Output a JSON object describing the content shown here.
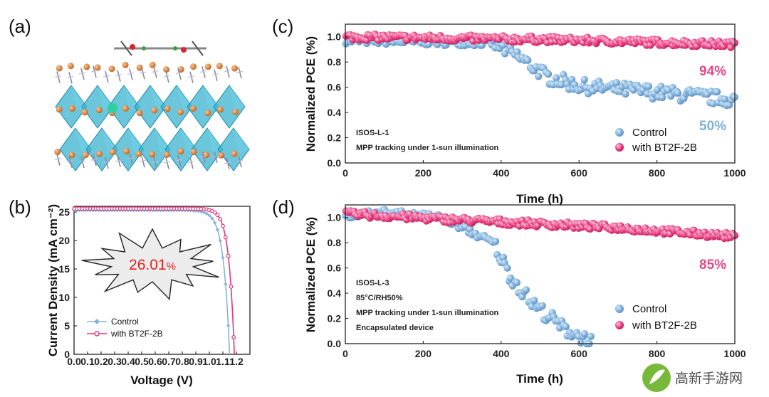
{
  "colors": {
    "control": "#87b3dc",
    "bt2f": "#e4357a",
    "pct_control": "#7fb0dc",
    "pct_bt2f": "#e04a86",
    "burst_text": "#e0241f"
  },
  "panel_a": {
    "label": "(a)"
  },
  "chart_data": [
    {
      "id": "b",
      "panel_label": "(b)",
      "type": "line",
      "xlabel": "Voltage (V)",
      "ylabel": "Current Density (mA cm⁻²)",
      "xlim": [
        0.0,
        1.3
      ],
      "ylim": [
        0,
        26
      ],
      "xticks": [
        "0.0",
        "0.1",
        "0.2",
        "0.3",
        "0.4",
        "0.5",
        "0.6",
        "0.7",
        "0.8",
        "0.9",
        "1.0",
        "1.1",
        "1.2"
      ],
      "yticks": [
        "0",
        "5",
        "10",
        "15",
        "20",
        "25"
      ],
      "series": [
        {
          "name": "Control",
          "color_key": "control",
          "jsc": 25.3,
          "voc": 1.15,
          "shape": 0.045
        },
        {
          "name": "with BT2F-2B",
          "color_key": "bt2f",
          "jsc": 25.6,
          "voc": 1.185,
          "shape": 0.04
        }
      ],
      "annotation": {
        "value": "26.01",
        "unit": "%"
      },
      "legend": "bottom-left"
    },
    {
      "id": "c",
      "panel_label": "(c)",
      "type": "scatter",
      "xlabel": "Time (h)",
      "ylabel": "Normalized PCE (%)",
      "xlim": [
        0,
        1000
      ],
      "ylim": [
        0.0,
        1.1
      ],
      "xticks": [
        "0",
        "200",
        "400",
        "600",
        "800",
        "1000"
      ],
      "yticks": [
        "0.0",
        "0.2",
        "0.4",
        "0.6",
        "0.8",
        "1.0"
      ],
      "notes": [
        "ISOS-L-1",
        "MPP tracking under 1-sun illumination"
      ],
      "series": [
        {
          "name": "Control",
          "color_key": "control",
          "trend": [
            [
              0,
              0.97
            ],
            [
              380,
              0.95
            ],
            [
              440,
              0.85
            ],
            [
              520,
              0.68
            ],
            [
              600,
              0.61
            ],
            [
              800,
              0.56
            ],
            [
              1000,
              0.5
            ]
          ]
        },
        {
          "name": "with BT2F-2B",
          "color_key": "bt2f",
          "trend": [
            [
              0,
              1.0
            ],
            [
              500,
              0.98
            ],
            [
              1000,
              0.94
            ]
          ]
        }
      ],
      "final_labels": [
        {
          "text": "94%",
          "color_key": "pct_bt2f"
        },
        {
          "text": "50%",
          "color_key": "pct_control"
        }
      ],
      "legend": "bottom-right"
    },
    {
      "id": "d",
      "panel_label": "(d)",
      "type": "scatter",
      "xlabel": "Time (h)",
      "ylabel": "Normalized PCE (%)",
      "xlim": [
        0,
        1000
      ],
      "ylim": [
        0.0,
        1.1
      ],
      "xticks": [
        "0",
        "200",
        "400",
        "600",
        "800",
        "1000"
      ],
      "yticks": [
        "0.0",
        "0.2",
        "0.4",
        "0.6",
        "0.8",
        "1.0"
      ],
      "notes": [
        "ISOS-L-3",
        "85°C/RH50%",
        "MPP tracking under 1-sun illumination",
        "Encapsulated device"
      ],
      "series": [
        {
          "name": "Control",
          "color_key": "control",
          "trend": [
            [
              0,
              1.02
            ],
            [
              100,
              1.04
            ],
            [
              250,
              1.0
            ],
            [
              300,
              0.92
            ],
            [
              380,
              0.8
            ],
            [
              420,
              0.55
            ],
            [
              480,
              0.32
            ],
            [
              560,
              0.12
            ],
            [
              630,
              0.02
            ]
          ]
        },
        {
          "name": "with BT2F-2B",
          "color_key": "bt2f",
          "trend": [
            [
              0,
              1.03
            ],
            [
              300,
              0.98
            ],
            [
              700,
              0.92
            ],
            [
              1000,
              0.85
            ]
          ]
        }
      ],
      "final_labels": [
        {
          "text": "85%",
          "color_key": "pct_bt2f"
        }
      ],
      "legend": "bottom-right"
    }
  ],
  "watermark": {
    "text": "高新手游网"
  }
}
